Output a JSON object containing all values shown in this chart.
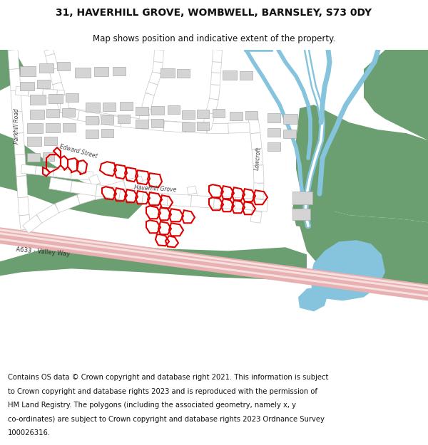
{
  "title_line1": "31, HAVERHILL GROVE, WOMBWELL, BARNSLEY, S73 0DY",
  "title_line2": "Map shows position and indicative extent of the property.",
  "footer_lines": [
    "Contains OS data © Crown copyright and database right 2021. This information is subject",
    "to Crown copyright and database rights 2023 and is reproduced with the permission of",
    "HM Land Registry. The polygons (including the associated geometry, namely x, y",
    "co-ordinates) are subject to Crown copyright and database rights 2023 Ordnance Survey",
    "100026316."
  ],
  "map_bg": "#f8f8f8",
  "road_white": "#ffffff",
  "road_outline": "#c8c8c8",
  "green_color": "#6b9e70",
  "blue_color": "#85c4dc",
  "blue_river": "#85c4dc",
  "pink_color": "#e8b0b0",
  "building_fill": "#d4d4d4",
  "building_edge": "#aaaaaa",
  "property_red": "#dd0000",
  "label_color": "#444444",
  "title_bold": true,
  "title_fontsize": 10,
  "subtitle_fontsize": 8.5,
  "footer_fontsize": 7.2
}
